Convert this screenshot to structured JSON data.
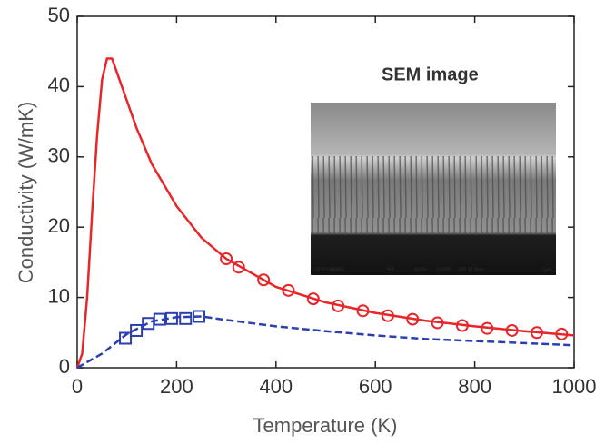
{
  "chart_data": {
    "type": "line",
    "xlabel": "Temperature (K)",
    "ylabel": "Conductivity (W/mK)",
    "xlim": [
      0,
      1000
    ],
    "ylim": [
      0,
      50
    ],
    "xticks": [
      0,
      200,
      400,
      600,
      800,
      1000
    ],
    "yticks": [
      0,
      10,
      20,
      30,
      40,
      50
    ],
    "grid": false,
    "series": [
      {
        "style": "line",
        "dashed": false,
        "color": "#e8262a",
        "x": [
          0,
          10,
          20,
          30,
          40,
          50,
          60,
          70,
          80,
          100,
          120,
          150,
          200,
          250,
          300,
          400,
          500,
          600,
          700,
          800,
          900,
          1000
        ],
        "values": [
          0,
          2,
          10,
          22,
          33,
          41,
          44,
          44,
          42,
          38,
          34,
          29,
          23,
          18.5,
          15.5,
          11.5,
          9.3,
          7.8,
          6.7,
          5.9,
          5.2,
          4.6
        ]
      },
      {
        "style": "circle",
        "color": "#e8262a",
        "x": [
          300,
          325,
          375,
          425,
          475,
          525,
          575,
          625,
          675,
          725,
          775,
          825,
          875,
          925,
          975
        ],
        "values": [
          15.5,
          14.3,
          12.5,
          11,
          9.8,
          8.8,
          8.1,
          7.4,
          6.9,
          6.4,
          6,
          5.6,
          5.3,
          5,
          4.8
        ]
      },
      {
        "style": "line",
        "dashed": true,
        "color": "#2b3fb0",
        "x": [
          0,
          50,
          100,
          150,
          200,
          250,
          300,
          400,
          500,
          600,
          700,
          800,
          900,
          1000
        ],
        "values": [
          0,
          2,
          4.8,
          6.6,
          7.2,
          7.3,
          6.8,
          5.9,
          5.2,
          4.6,
          4.1,
          3.8,
          3.5,
          3.2
        ]
      },
      {
        "style": "square",
        "color": "#2b3fb0",
        "x": [
          97,
          119,
          143,
          166,
          190,
          218,
          245
        ],
        "values": [
          4.2,
          5.3,
          6.3,
          6.9,
          7,
          7,
          7.3
        ]
      }
    ]
  },
  "inset": {
    "title": "SEM image",
    "labels": [
      "COLO MINES",
      "SEI",
      "10.0kV",
      "X4,000",
      "WD 10.2mm",
      "1μm"
    ]
  }
}
